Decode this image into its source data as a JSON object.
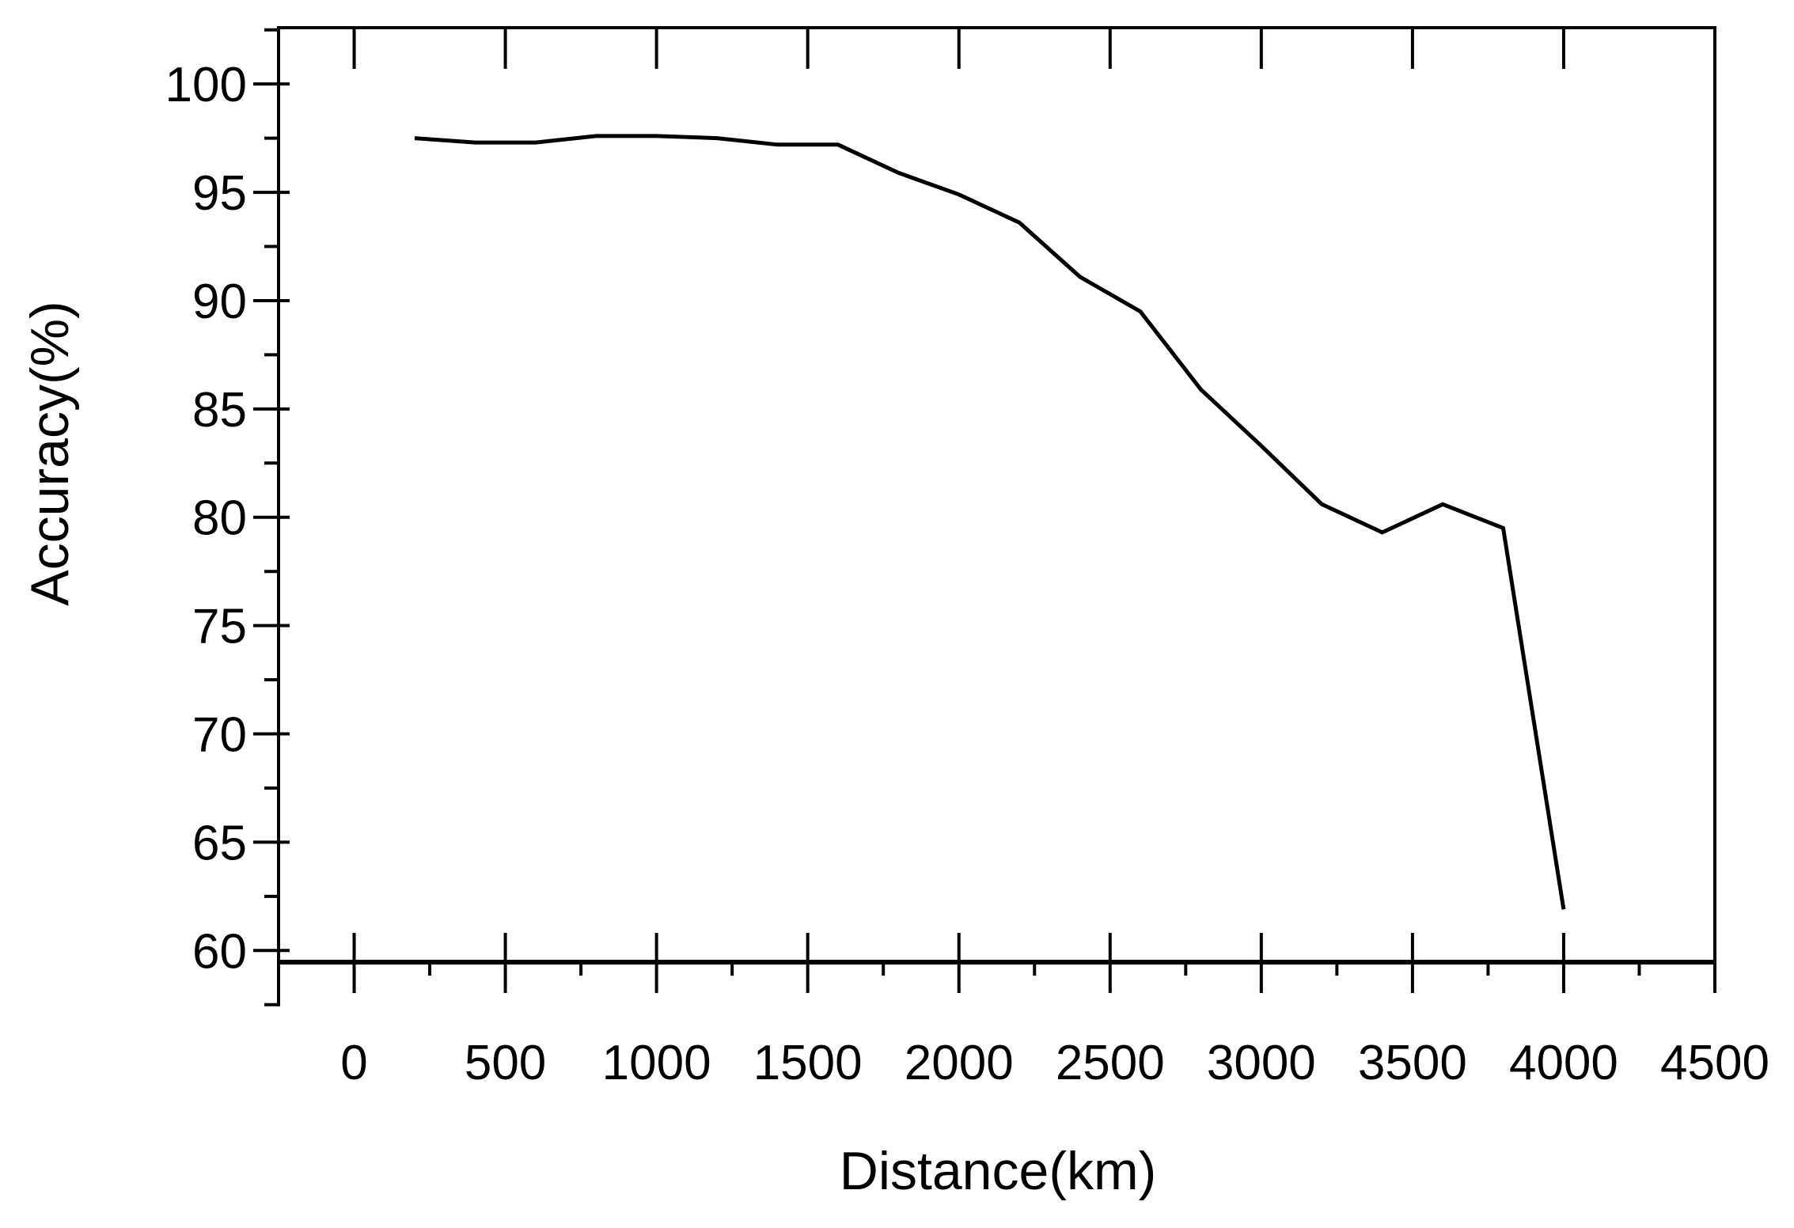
{
  "chart_data": {
    "type": "line",
    "title": "",
    "xlabel": "Distance(km)",
    "ylabel": "Accuracy(%)",
    "xlim": [
      -250,
      4500
    ],
    "ylim": [
      59.5,
      102.6
    ],
    "xticks": [
      0,
      500,
      1000,
      1500,
      2000,
      2500,
      3000,
      3500,
      4000,
      4500
    ],
    "xtick_labels": [
      "0",
      "500",
      "1000",
      "1500",
      "2000",
      "2500",
      "3000",
      "3500",
      "4000",
      "4500"
    ],
    "yticks": [
      60,
      65,
      70,
      75,
      80,
      85,
      90,
      95,
      100
    ],
    "ytick_labels": [
      "60",
      "65",
      "70",
      "75",
      "80",
      "85",
      "90",
      "95",
      "100"
    ],
    "grid": false,
    "legend": "none",
    "line_color": "#000000",
    "series": [
      {
        "x": [
          200,
          400,
          600,
          800,
          1000,
          1200,
          1400,
          1600,
          1800,
          2000,
          2200,
          2400,
          2600,
          2800,
          3000,
          3200,
          3400,
          3600,
          3800,
          4000
        ],
        "y": [
          97.5,
          97.3,
          97.3,
          97.6,
          97.6,
          97.5,
          97.2,
          97.2,
          95.9,
          94.9,
          93.6,
          91.1,
          89.5,
          85.9,
          83.3,
          80.6,
          79.3,
          80.6,
          79.5,
          61.9
        ]
      }
    ]
  }
}
